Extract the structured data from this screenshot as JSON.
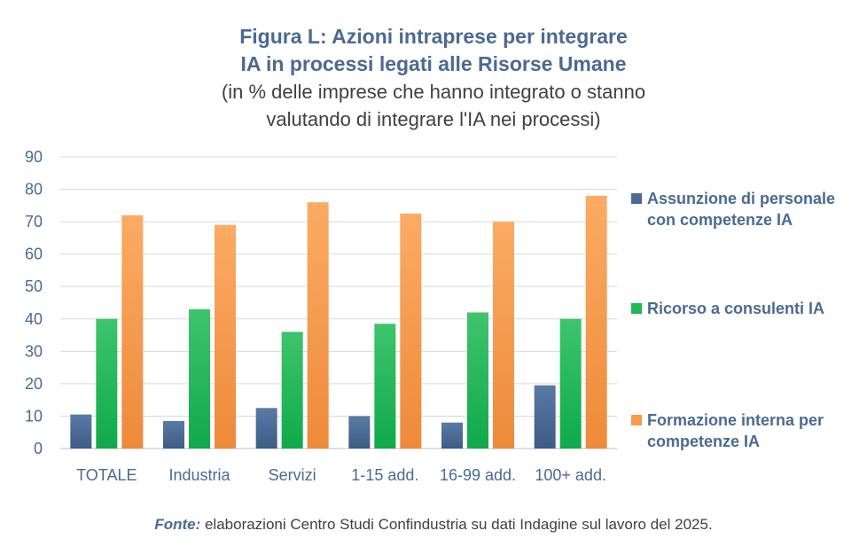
{
  "title_line1": "Figura L: Azioni intraprese per integrare",
  "title_line2": "IA in processi legati alle Risorse Umane",
  "subtitle_line1": "(in % delle imprese che hanno integrato o stanno",
  "subtitle_line2": "valutando di integrare l'IA nei processi)",
  "source_label": "Fonte:",
  "source_text": " elaborazioni Centro Studi Confindustria su dati Indagine sul lavoro del 2025.",
  "legend": [
    {
      "line1": "Assunzione di personale",
      "line2": "con competenze IA",
      "color": "#4a6a94"
    },
    {
      "line1": "Ricorso a consulenti IA",
      "line2": "",
      "color": "#1fb85a"
    },
    {
      "line1": "Formazione interna per",
      "line2": "competenze IA",
      "color": "#f59a4e"
    }
  ],
  "chart_data": {
    "type": "bar",
    "title": "Figura L: Azioni intraprese per integrare IA in processi legati alle Risorse Umane",
    "subtitle": "(in % delle imprese che hanno integrato o stanno valutando di integrare l'IA nei processi)",
    "categories": [
      "TOTALE",
      "Industria",
      "Servizi",
      "1-15 add.",
      "16-99 add.",
      "100+ add."
    ],
    "series": [
      {
        "name": "Assunzione di personale con competenze IA",
        "values": [
          10.5,
          8.5,
          12.5,
          10,
          8,
          19.5
        ],
        "color": "#4a6a94"
      },
      {
        "name": "Ricorso a consulenti IA",
        "values": [
          40,
          43,
          36,
          38.5,
          42,
          40
        ],
        "color": "#1fb85a"
      },
      {
        "name": "Formazione interna per competenze IA",
        "values": [
          72,
          69,
          76,
          72.5,
          70,
          78
        ],
        "color": "#f59a4e"
      }
    ],
    "ylim": [
      0,
      90
    ],
    "yticks": [
      0,
      10,
      20,
      30,
      40,
      50,
      60,
      70,
      80,
      90
    ],
    "grid": true,
    "legend_position": "right"
  }
}
